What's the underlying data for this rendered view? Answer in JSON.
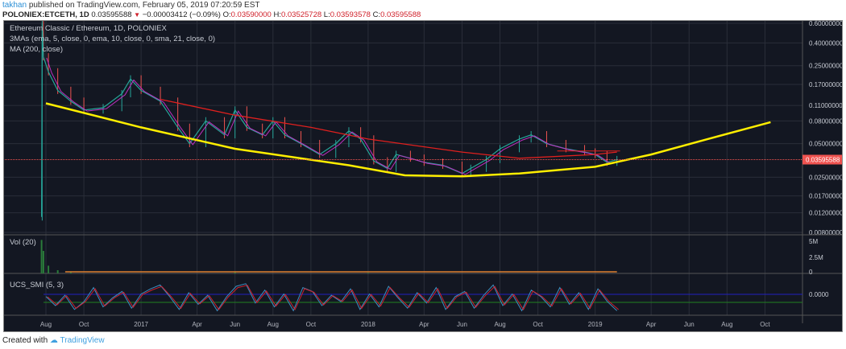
{
  "header": {
    "user": "takhan",
    "published": "published on TradingView.com, February 05, 2019 07:20:59 EST",
    "symbol": "POLONIEX:ETCETH, 1D",
    "last": "0.03595588",
    "change": "−0.00003412 (−0.09%)",
    "o_label": "O:",
    "o": "0.03590000",
    "h_label": "H:",
    "h": "0.03525728",
    "l_label": "L:",
    "l": "0.03593578",
    "c_label": "C:",
    "c": "0.03595588"
  },
  "legend": {
    "title": "Ethereum Classic / Ethereum, 1D, POLONIEX",
    "mas": "3MAs (ema, 5, close, 0, ema, 10, close, 0, sma, 21, close, 0)",
    "ma200": "MA (200, close)",
    "vol": "Vol (20)",
    "smi": "UCS_SMI (5, 3)"
  },
  "footer": {
    "created": "Created with",
    "brand": "TradingView"
  },
  "colors": {
    "bg": "#131722",
    "grid": "#2a2e39",
    "up": "#26a69a",
    "down": "#ef5350",
    "ma200": "#e0201e",
    "curve": "#ffee00",
    "ema": "#c030c0",
    "smi1": "#3c8fc0",
    "smi2": "#d02030",
    "smi_upper": "#2020c0",
    "smi_lower": "#208020"
  },
  "chart_data": [
    {
      "type": "line",
      "scale": "log",
      "ylim": [
        0.008,
        0.6
      ],
      "yticks": [
        "0.60000000",
        "0.40000000",
        "0.25000000",
        "0.17000000",
        "0.11000000",
        "0.08000000",
        "0.05000000",
        "0.02500000",
        "0.01700000",
        "0.01200000",
        "0.00800000"
      ],
      "current_price_label": "0.03595588",
      "xticks": [
        "Aug",
        "Oct",
        "2017",
        "Apr",
        "Jun",
        "Aug",
        "Oct",
        "2018",
        "Apr",
        "Jun",
        "Aug",
        "Oct",
        "2019",
        "Apr",
        "Jun",
        "Aug",
        "Oct"
      ],
      "series": [
        {
          "role": "price",
          "points": [
            [
              "2016-07-25",
              0.011
            ],
            [
              "2016-07-26",
              0.6
            ],
            [
              "2016-07-28",
              0.3
            ],
            [
              "2016-08-05",
              0.22
            ],
            [
              "2016-08-20",
              0.15
            ],
            [
              "2016-09-10",
              0.12
            ],
            [
              "2016-10-01",
              0.1
            ],
            [
              "2016-11-01",
              0.105
            ],
            [
              "2016-12-01",
              0.14
            ],
            [
              "2016-12-15",
              0.19
            ],
            [
              "2017-01-01",
              0.15
            ],
            [
              "2017-02-01",
              0.12
            ],
            [
              "2017-03-01",
              0.07
            ],
            [
              "2017-03-20",
              0.05
            ],
            [
              "2017-04-15",
              0.08
            ],
            [
              "2017-05-15",
              0.06
            ],
            [
              "2017-06-01",
              0.1
            ],
            [
              "2017-06-20",
              0.07
            ],
            [
              "2017-07-15",
              0.06
            ],
            [
              "2017-08-01",
              0.08
            ],
            [
              "2017-08-20",
              0.06
            ],
            [
              "2017-09-15",
              0.05
            ],
            [
              "2017-10-15",
              0.04
            ],
            [
              "2017-11-10",
              0.05
            ],
            [
              "2017-12-01",
              0.065
            ],
            [
              "2017-12-20",
              0.055
            ],
            [
              "2018-01-10",
              0.035
            ],
            [
              "2018-02-01",
              0.03
            ],
            [
              "2018-02-15",
              0.04
            ],
            [
              "2018-03-10",
              0.037
            ],
            [
              "2018-04-01",
              0.034
            ],
            [
              "2018-05-01",
              0.032
            ],
            [
              "2018-06-01",
              0.027
            ],
            [
              "2018-06-15",
              0.03
            ],
            [
              "2018-07-10",
              0.036
            ],
            [
              "2018-08-01",
              0.045
            ],
            [
              "2018-09-01",
              0.055
            ],
            [
              "2018-09-20",
              0.06
            ],
            [
              "2018-10-15",
              0.05
            ],
            [
              "2018-11-15",
              0.045
            ],
            [
              "2018-12-15",
              0.042
            ],
            [
              "2019-01-01",
              0.04
            ],
            [
              "2019-01-20",
              0.034
            ],
            [
              "2019-02-05",
              0.03595588
            ]
          ]
        },
        {
          "role": "ma200",
          "points": [
            [
              "2017-02-01",
              0.125
            ],
            [
              "2017-06-01",
              0.09
            ],
            [
              "2017-10-01",
              0.07
            ],
            [
              "2018-01-01",
              0.055
            ],
            [
              "2018-06-01",
              0.042
            ],
            [
              "2018-09-01",
              0.037
            ],
            [
              "2019-01-01",
              0.04
            ],
            [
              "2019-02-05",
              0.042
            ]
          ]
        },
        {
          "role": "curve",
          "points": [
            [
              "2016-08-01",
              0.115
            ],
            [
              "2017-01-01",
              0.07
            ],
            [
              "2017-06-01",
              0.045
            ],
            [
              "2017-12-01",
              0.032
            ],
            [
              "2018-03-01",
              0.026
            ],
            [
              "2018-06-01",
              0.0255
            ],
            [
              "2018-09-01",
              0.027
            ],
            [
              "2019-01-01",
              0.031
            ],
            [
              "2019-04-01",
              0.04
            ],
            [
              "2019-07-01",
              0.055
            ],
            [
              "2019-10-10",
              0.078
            ]
          ]
        }
      ]
    },
    {
      "type": "bar",
      "title": "Vol (20)",
      "yticks": [
        "5M",
        "2.5M",
        "0"
      ],
      "points": [
        [
          "2016-07-25",
          5.2
        ],
        [
          "2016-07-28",
          3.5
        ],
        [
          "2016-08-05",
          1.2
        ],
        [
          "2016-08-20",
          0.5
        ],
        [
          "2016-09-10",
          0.2
        ],
        [
          "2017-06-01",
          0.3
        ],
        [
          "2018-01-01",
          0.1
        ]
      ]
    },
    {
      "type": "line",
      "title": "UCS_SMI (5, 3)",
      "yticks": [
        "0.0000"
      ],
      "values": [
        0.2,
        -0.5,
        0.3,
        -0.8,
        -0.2,
        0.9,
        -0.6,
        0.1,
        0.6,
        -0.7,
        0.4,
        0.8,
        1.1,
        0.2,
        -0.8,
        0.5,
        -0.4,
        0.3,
        -0.9,
        0.2,
        1.0,
        1.2,
        -0.3,
        0.7,
        -0.6,
        0.4,
        -0.9,
        0.9,
        0.6,
        -0.5,
        0.3,
        -0.2,
        0.8,
        -0.8,
        0.4,
        -0.6,
        1.0,
        0.1,
        -0.7,
        0.5,
        -0.3,
        0.9,
        -0.8,
        0.2,
        0.6,
        -0.7,
        0.3,
        1.1,
        -0.5,
        0.4,
        -0.9,
        0.7,
        0.2,
        -0.6,
        0.9,
        -0.4,
        0.5,
        -0.8,
        0.8,
        -0.2,
        -0.9
      ]
    }
  ]
}
